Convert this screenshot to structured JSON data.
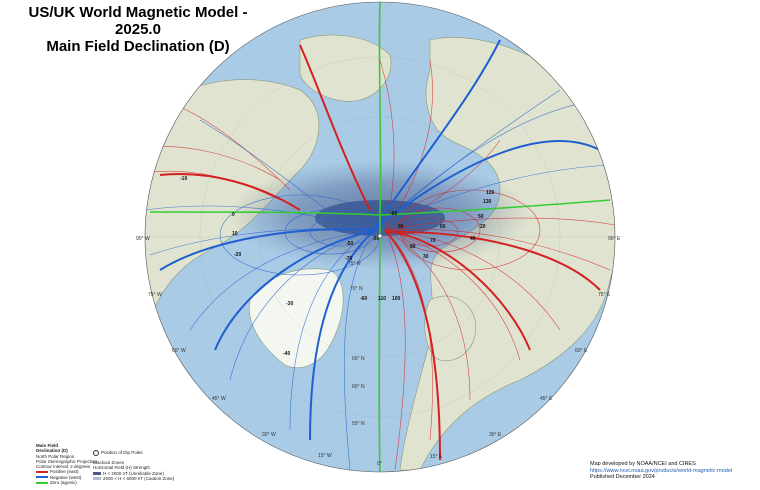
{
  "header": {
    "title": "US/UK World Magnetic Model - 2025.0",
    "subtitle": "Main Field Declination (D)"
  },
  "legend": {
    "heading_1": "Main Field",
    "heading_2": "Declination (D)",
    "region": "North Polar Region",
    "projection": "Polar Stereographic Projection",
    "contour_interval": "Contour interval: 2 degrees",
    "positive_label": "Positive (east)",
    "negative_label": "Negative (west)",
    "zero_label": "Zero (agonic)",
    "dip_pole_label": "Position of Dip Poles",
    "blackout_heading": "Blackout Zones",
    "blackout_sub": "Horizontal Field (H) Strength",
    "blackout_1": "H < 2000 nT (Unreliable Zone)",
    "blackout_2": "2000 < H < 6000 nT (Caution Zone)",
    "colors": {
      "positive": "#d42020",
      "negative": "#1f5fd0",
      "zero": "#33cc33",
      "ocean": "#a9cbe6",
      "land": "#dfe3cf"
    }
  },
  "credit": {
    "line1": "Map developed by NOAA/NCEI and CIRES",
    "url": "https://www.ncei.noaa.gov/products/world-magnetic-model",
    "line3": "Published December 2024"
  },
  "longitude_labels": [
    "90° W",
    "90° E",
    "75° E",
    "60° E",
    "45° E",
    "30° E",
    "15° E",
    "0°",
    "15° W",
    "30° W",
    "45° W",
    "60° W",
    "75° W"
  ],
  "latitude_labels": [
    "75° N",
    "70° N",
    "65° N",
    "60° N",
    "55° N"
  ],
  "contour_labels": [
    "-10",
    "0",
    "10",
    "-20",
    "-30",
    "-40",
    "-50",
    "-60",
    "-70",
    "-80",
    "-90",
    "20",
    "30",
    "40",
    "50",
    "60",
    "70",
    "80",
    "90",
    "100",
    "110",
    "120",
    "130"
  ]
}
